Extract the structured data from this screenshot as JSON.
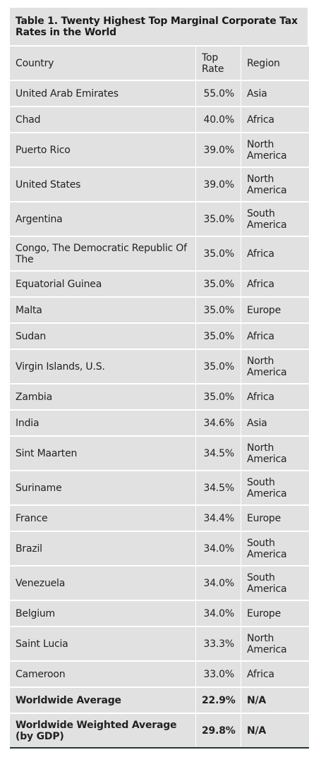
{
  "table": {
    "title": "Table 1. Twenty Highest Top Marginal Corporate Tax Rates in the World",
    "headers": {
      "country": "Country",
      "rate": "Top Rate",
      "region": "Region"
    },
    "rows": [
      {
        "country": "United Arab Emirates",
        "rate": "55.0%",
        "region": "Asia"
      },
      {
        "country": "Chad",
        "rate": "40.0%",
        "region": "Africa"
      },
      {
        "country": "Puerto Rico",
        "rate": "39.0%",
        "region": "North America"
      },
      {
        "country": "United States",
        "rate": "39.0%",
        "region": "North America"
      },
      {
        "country": "Argentina",
        "rate": "35.0%",
        "region": "South America"
      },
      {
        "country": "Congo, The Democratic Republic Of The",
        "rate": "35.0%",
        "region": "Africa"
      },
      {
        "country": "Equatorial Guinea",
        "rate": "35.0%",
        "region": "Africa"
      },
      {
        "country": "Malta",
        "rate": "35.0%",
        "region": "Europe"
      },
      {
        "country": "Sudan",
        "rate": "35.0%",
        "region": "Africa"
      },
      {
        "country": "Virgin Islands, U.S.",
        "rate": "35.0%",
        "region": "North America"
      },
      {
        "country": "Zambia",
        "rate": "35.0%",
        "region": "Africa"
      },
      {
        "country": "India",
        "rate": "34.6%",
        "region": "Asia"
      },
      {
        "country": "Sint Maarten",
        "rate": "34.5%",
        "region": "North America"
      },
      {
        "country": "Suriname",
        "rate": "34.5%",
        "region": "South America"
      },
      {
        "country": "France",
        "rate": "34.4%",
        "region": "Europe"
      },
      {
        "country": "Brazil",
        "rate": "34.0%",
        "region": "South America"
      },
      {
        "country": "Venezuela",
        "rate": "34.0%",
        "region": "South America"
      },
      {
        "country": "Belgium",
        "rate": "34.0%",
        "region": "Europe"
      },
      {
        "country": "Saint Lucia",
        "rate": "33.3%",
        "region": "North America"
      },
      {
        "country": "Cameroon",
        "rate": "33.0%",
        "region": "Africa"
      }
    ],
    "averages": [
      {
        "country": "Worldwide Average",
        "rate": "22.9%",
        "region": "N/A"
      },
      {
        "country": "Worldwide Weighted Average (by GDP)",
        "rate": "29.8%",
        "region": "N/A"
      }
    ]
  }
}
